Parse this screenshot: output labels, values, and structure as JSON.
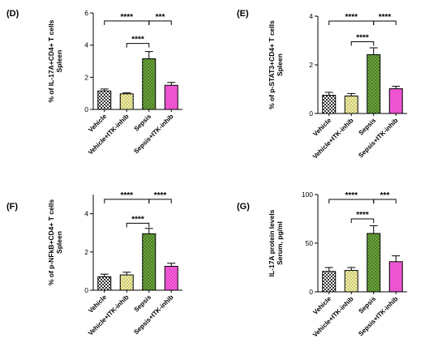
{
  "figure": {
    "bar_colors": [
      "#ffffff",
      "#f3f0a6",
      "#6aa43a",
      "#ff5ce0"
    ],
    "pattern_colors": [
      "#333333",
      "#8c8a3c",
      "#2e5219",
      "#b23a9c"
    ],
    "error_bar_color": "#000000",
    "axis_color": "#000000"
  },
  "chart_data": [
    {
      "panel": "(D)",
      "type": "bar",
      "categories": [
        "Vehicle",
        "Vehicle+ITK-inhib",
        "Sepsis",
        "Sepsis+ITK-inhib"
      ],
      "values": [
        1.15,
        0.97,
        3.15,
        1.5
      ],
      "errors": [
        0.12,
        0.06,
        0.45,
        0.18
      ],
      "ylabel_lines": [
        "% of IL-17A+CD4+ T cells",
        "Spleen"
      ],
      "ylim": [
        0,
        6
      ],
      "yticks": [
        "0",
        "2",
        "4",
        "6"
      ],
      "yticks_values": [
        0,
        2,
        4,
        6
      ],
      "significance": [
        {
          "from": 0,
          "to": 2,
          "label": "****",
          "level": 5.5
        },
        {
          "from": 2,
          "to": 3,
          "label": "***",
          "level": 5.5
        },
        {
          "from": 1,
          "to": 2,
          "label": "****",
          "level": 4.1
        }
      ]
    },
    {
      "panel": "(E)",
      "type": "bar",
      "categories": [
        "Vehicle",
        "Vehicle+ITK-inhib",
        "Sepsis",
        "Sepsis+ITK-inhib"
      ],
      "values": [
        0.75,
        0.72,
        2.42,
        1.02
      ],
      "errors": [
        0.12,
        0.1,
        0.28,
        0.1
      ],
      "ylabel_lines": [
        "% of p-STAT3+CD4+ T cells",
        "Spleen"
      ],
      "ylim": [
        0,
        4
      ],
      "yticks": [
        "0",
        "2",
        "4"
      ],
      "yticks_values": [
        0,
        2,
        4
      ],
      "significance": [
        {
          "from": 0,
          "to": 2,
          "label": "****",
          "level": 3.8
        },
        {
          "from": 2,
          "to": 3,
          "label": "****",
          "level": 3.8
        },
        {
          "from": 1,
          "to": 2,
          "label": "****",
          "level": 2.95
        }
      ]
    },
    {
      "panel": "(F)",
      "type": "bar",
      "categories": [
        "Vehicle",
        "Vehicle+ITK-inhib",
        "Sepsis",
        "Sepsis+ITK-inhib"
      ],
      "values": [
        0.7,
        0.8,
        2.95,
        1.25
      ],
      "errors": [
        0.14,
        0.14,
        0.28,
        0.16
      ],
      "ylabel_lines": [
        "% of p-NFkB+CD4+ T cells",
        "Spleen"
      ],
      "ylim": [
        0,
        5
      ],
      "yticks": [
        "0",
        "2",
        "4"
      ],
      "yticks_values": [
        0,
        2,
        4
      ],
      "significance": [
        {
          "from": 0,
          "to": 2,
          "label": "****",
          "level": 4.75
        },
        {
          "from": 2,
          "to": 3,
          "label": "****",
          "level": 4.75
        },
        {
          "from": 1,
          "to": 2,
          "label": "****",
          "level": 3.5
        }
      ]
    },
    {
      "panel": "(G)",
      "type": "bar",
      "categories": [
        "Vehicle",
        "Vehicle+ITK-inhib",
        "Sepsis",
        "Sepsis+ITK-inhib"
      ],
      "values": [
        21,
        22,
        60,
        31
      ],
      "errors": [
        4,
        3,
        8,
        6
      ],
      "ylabel_lines": [
        "IL-17A protein levels",
        "Serum, pg/ml"
      ],
      "ylim": [
        0,
        100
      ],
      "yticks": [
        "0",
        "50",
        "100"
      ],
      "yticks_values": [
        0,
        50,
        100
      ],
      "significance": [
        {
          "from": 0,
          "to": 2,
          "label": "****",
          "level": 95
        },
        {
          "from": 2,
          "to": 3,
          "label": "***",
          "level": 95
        },
        {
          "from": 1,
          "to": 2,
          "label": "****",
          "level": 75
        }
      ]
    }
  ]
}
